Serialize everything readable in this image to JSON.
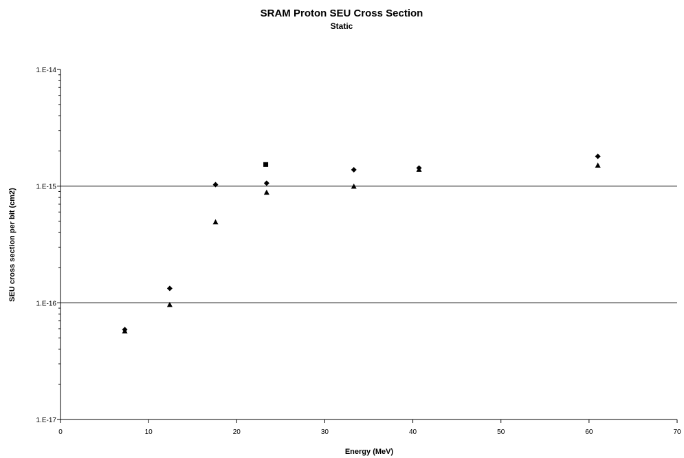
{
  "chart_data": {
    "type": "scatter",
    "title": "SRAM Proton SEU Cross Section",
    "subtitle": "Static",
    "xlabel": "Energy (MeV)",
    "ylabel": "SEU cross section per bit (cm2)",
    "xlim": [
      0,
      70
    ],
    "ylim": [
      1e-17,
      1e-14
    ],
    "yscale": "log",
    "grid": "horizontal major lines",
    "x_ticks": [
      0,
      10,
      20,
      30,
      40,
      50,
      60,
      70
    ],
    "x_tick_labels": [
      "0",
      "10",
      "20",
      "30",
      "40",
      "50",
      "60",
      "70"
    ],
    "y_ticks": [
      1e-17,
      1e-16,
      1e-15,
      1e-14
    ],
    "y_tick_labels": [
      "1.E-17",
      "1.E-16",
      "1.E-15",
      "1.E-14"
    ],
    "series": [
      {
        "marker": "diamond",
        "points": [
          {
            "x": 7.3,
            "y": 5.9e-17
          },
          {
            "x": 12.4,
            "y": 1.33e-16
          },
          {
            "x": 17.6,
            "y": 1.03e-15
          },
          {
            "x": 23.4,
            "y": 1.06e-15
          },
          {
            "x": 33.3,
            "y": 1.38e-15
          },
          {
            "x": 40.7,
            "y": 1.43e-15
          },
          {
            "x": 61.0,
            "y": 1.8e-15
          }
        ]
      },
      {
        "marker": "square",
        "points": [
          {
            "x": 23.3,
            "y": 1.53e-15
          }
        ]
      },
      {
        "marker": "triangle",
        "points": [
          {
            "x": 7.3,
            "y": 5.7e-17
          },
          {
            "x": 12.4,
            "y": 9.6e-17
          },
          {
            "x": 17.6,
            "y": 4.9e-16
          },
          {
            "x": 23.4,
            "y": 8.8e-16
          },
          {
            "x": 33.3,
            "y": 9.9e-16
          },
          {
            "x": 40.7,
            "y": 1.38e-15
          },
          {
            "x": 61.0,
            "y": 1.5e-15
          }
        ]
      }
    ]
  }
}
